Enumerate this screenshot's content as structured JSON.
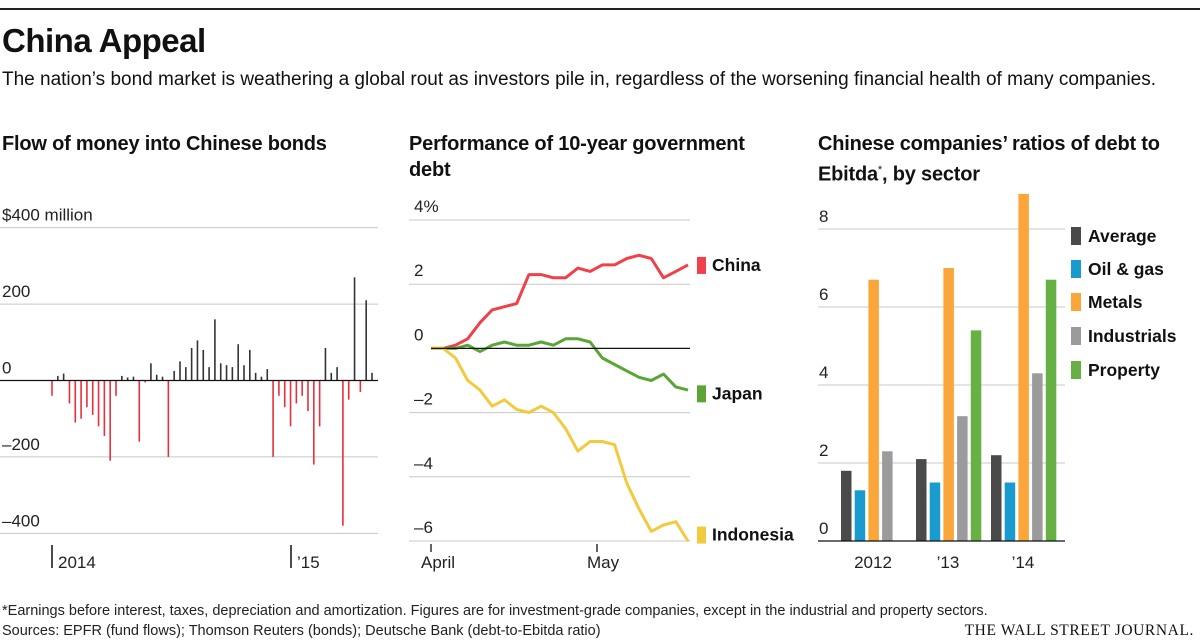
{
  "title": "China Appeal",
  "subtitle": "The nation’s bond market is weathering a global rout as investors pile in, regardless of the worsening financial health of many companies.",
  "footnote": "*Earnings before interest, taxes, depreciation and amortization. Figures are for investment-grade companies, except in the industrial and property sectors.",
  "sources": "Sources: EPFR (fund flows); Thomson Reuters (bonds); Deutsche Bank (debt-to-Ebitda ratio)",
  "publisher": "THE WALL STREET JOURNAL.",
  "colors": {
    "negative": "#e8303a",
    "positive": "#333333",
    "china": "#f0414a",
    "japan": "#5aa536",
    "indonesia": "#f2ca3e",
    "average": "#4a4a4a",
    "oilgas": "#1a9bd0",
    "metals": "#fba63a",
    "industrials": "#9b9b9b",
    "property": "#67b043",
    "grid": "#c8c8c8",
    "zero": "#111111"
  },
  "chart_data": [
    {
      "type": "bar",
      "title": "Flow of money into Chinese bonds",
      "ylabel": "$400 million",
      "ylim": [
        -420,
        420
      ],
      "yticks": [
        400,
        200,
        0,
        -200,
        -400
      ],
      "ytick_labels": [
        "$400 million",
        "200",
        "0",
        "–200",
        "–400"
      ],
      "xtick_labels": [
        "2014",
        "’15"
      ],
      "grid": true,
      "values": [
        -40,
        12,
        18,
        -60,
        -110,
        -100,
        -70,
        -90,
        -120,
        -145,
        -210,
        -40,
        12,
        8,
        10,
        -160,
        -5,
        45,
        15,
        10,
        -200,
        25,
        50,
        35,
        85,
        105,
        80,
        35,
        160,
        45,
        40,
        35,
        95,
        40,
        80,
        20,
        10,
        30,
        -200,
        -40,
        -70,
        -120,
        -60,
        -40,
        -80,
        -220,
        -120,
        85,
        20,
        35,
        -380,
        -50,
        270,
        -30,
        210,
        20
      ]
    },
    {
      "type": "line",
      "title": "Performance of 10-year government debt",
      "ylim": [
        -6,
        4
      ],
      "yticks": [
        4,
        2,
        0,
        -2,
        -4,
        -6
      ],
      "ytick_labels": [
        "4%",
        "2",
        "0",
        "–2",
        "–4",
        "–6"
      ],
      "xtick_labels": [
        "April",
        "May"
      ],
      "grid": true,
      "series": [
        {
          "name": "China",
          "values": [
            0,
            0,
            0.1,
            0.3,
            0.8,
            1.2,
            1.3,
            1.4,
            2.3,
            2.3,
            2.2,
            2.2,
            2.5,
            2.4,
            2.6,
            2.6,
            2.8,
            2.9,
            2.8,
            2.2,
            2.4,
            2.6
          ]
        },
        {
          "name": "Japan",
          "values": [
            0,
            0,
            0,
            0.1,
            -0.1,
            0.1,
            0.2,
            0.1,
            0.1,
            0.2,
            0.1,
            0.3,
            0.3,
            0.2,
            -0.3,
            -0.5,
            -0.7,
            -0.9,
            -1.0,
            -0.8,
            -1.2,
            -1.3
          ]
        },
        {
          "name": "Indonesia",
          "values": [
            0,
            0,
            -0.3,
            -1.0,
            -1.3,
            -1.8,
            -1.6,
            -1.9,
            -2.0,
            -1.8,
            -2.0,
            -2.5,
            -3.2,
            -2.9,
            -2.9,
            -3.0,
            -4.2,
            -5.0,
            -5.7,
            -5.5,
            -5.4,
            -6.0
          ]
        }
      ]
    },
    {
      "type": "bar",
      "title": "Chinese companies’ ratios of debt to Ebitda",
      "title_suffix": ", by sector",
      "title_marker": "*",
      "categories": [
        "2012",
        "’13",
        "’14"
      ],
      "ylim": [
        0,
        9
      ],
      "yticks": [
        0,
        2,
        4,
        6,
        8
      ],
      "ytick_labels": [
        "0",
        "2",
        "4",
        "6",
        "8"
      ],
      "grid": true,
      "series": [
        {
          "name": "Average",
          "values": [
            1.8,
            2.1,
            2.2
          ]
        },
        {
          "name": "Oil & gas",
          "values": [
            1.3,
            1.5,
            1.5
          ]
        },
        {
          "name": "Metals",
          "values": [
            6.7,
            7.0,
            8.9
          ]
        },
        {
          "name": "Industrials",
          "values": [
            2.3,
            3.2,
            4.3
          ]
        },
        {
          "name": "Property",
          "values": [
            0,
            5.4,
            6.7
          ]
        }
      ]
    }
  ]
}
